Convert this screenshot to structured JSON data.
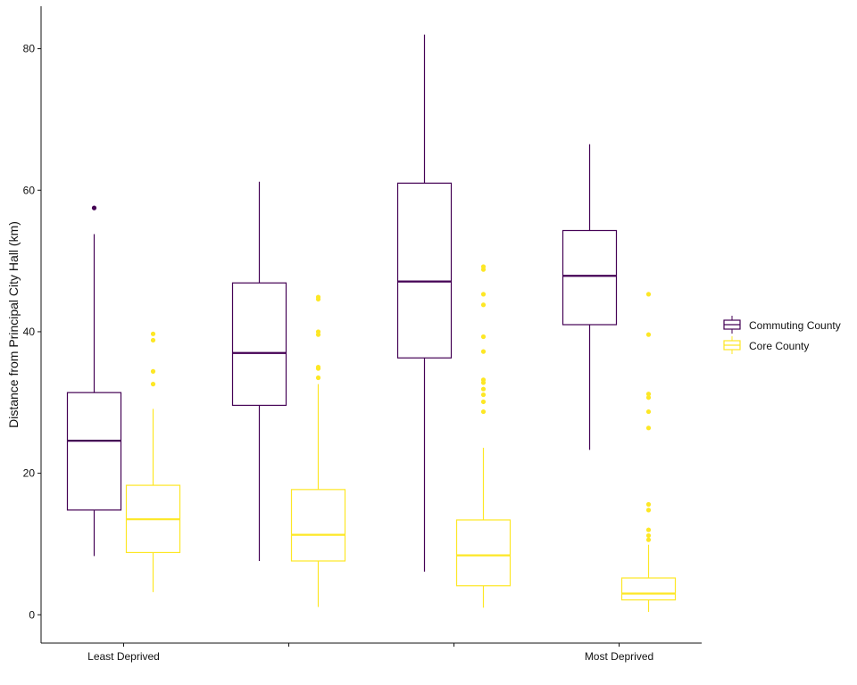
{
  "chart_data": {
    "type": "boxplot",
    "title": "",
    "xlabel": "",
    "ylabel": "Distance from Principal City Hall (km)",
    "ylim": [
      -4,
      86
    ],
    "yticks": [
      0,
      20,
      40,
      60,
      80
    ],
    "categories": [
      "Least Deprived",
      "",
      "",
      "Most Deprived"
    ],
    "grid": false,
    "legend_position": "right",
    "series": [
      {
        "name": "Commuting County",
        "color": "#440154",
        "boxes": [
          {
            "min": 8.3,
            "q1": 14.8,
            "median": 24.6,
            "q3": 31.4,
            "max": 53.8,
            "outliers": [
              57.5
            ]
          },
          {
            "min": 7.6,
            "q1": 29.6,
            "median": 37.0,
            "q3": 46.9,
            "max": 61.2,
            "outliers": []
          },
          {
            "min": 6.1,
            "q1": 36.3,
            "median": 47.1,
            "q3": 61.0,
            "max": 82.0,
            "outliers": []
          },
          {
            "min": 23.3,
            "q1": 41.0,
            "median": 47.9,
            "q3": 54.3,
            "max": 66.5,
            "outliers": []
          }
        ]
      },
      {
        "name": "Core County",
        "color": "#FDE725",
        "boxes": [
          {
            "min": 3.2,
            "q1": 8.8,
            "median": 13.5,
            "q3": 18.3,
            "max": 29.1,
            "outliers": [
              32.6,
              34.4,
              38.8,
              39.7
            ]
          },
          {
            "min": 1.1,
            "q1": 7.6,
            "median": 11.3,
            "q3": 17.7,
            "max": 32.6,
            "outliers": [
              33.5,
              34.8,
              35.0,
              39.6,
              40.0,
              44.6,
              44.9
            ]
          },
          {
            "min": 1.0,
            "q1": 4.1,
            "median": 8.4,
            "q3": 13.4,
            "max": 23.6,
            "outliers": [
              28.7,
              30.1,
              31.1,
              31.9,
              32.8,
              33.2,
              37.2,
              39.3,
              43.8,
              45.3,
              48.8,
              49.2
            ]
          },
          {
            "min": 0.4,
            "q1": 2.1,
            "median": 3.0,
            "q3": 5.2,
            "max": 9.9,
            "outliers": [
              10.6,
              11.2,
              12.0,
              14.8,
              15.6,
              26.4,
              28.7,
              30.7,
              31.2,
              39.6,
              45.3
            ]
          }
        ]
      }
    ]
  }
}
